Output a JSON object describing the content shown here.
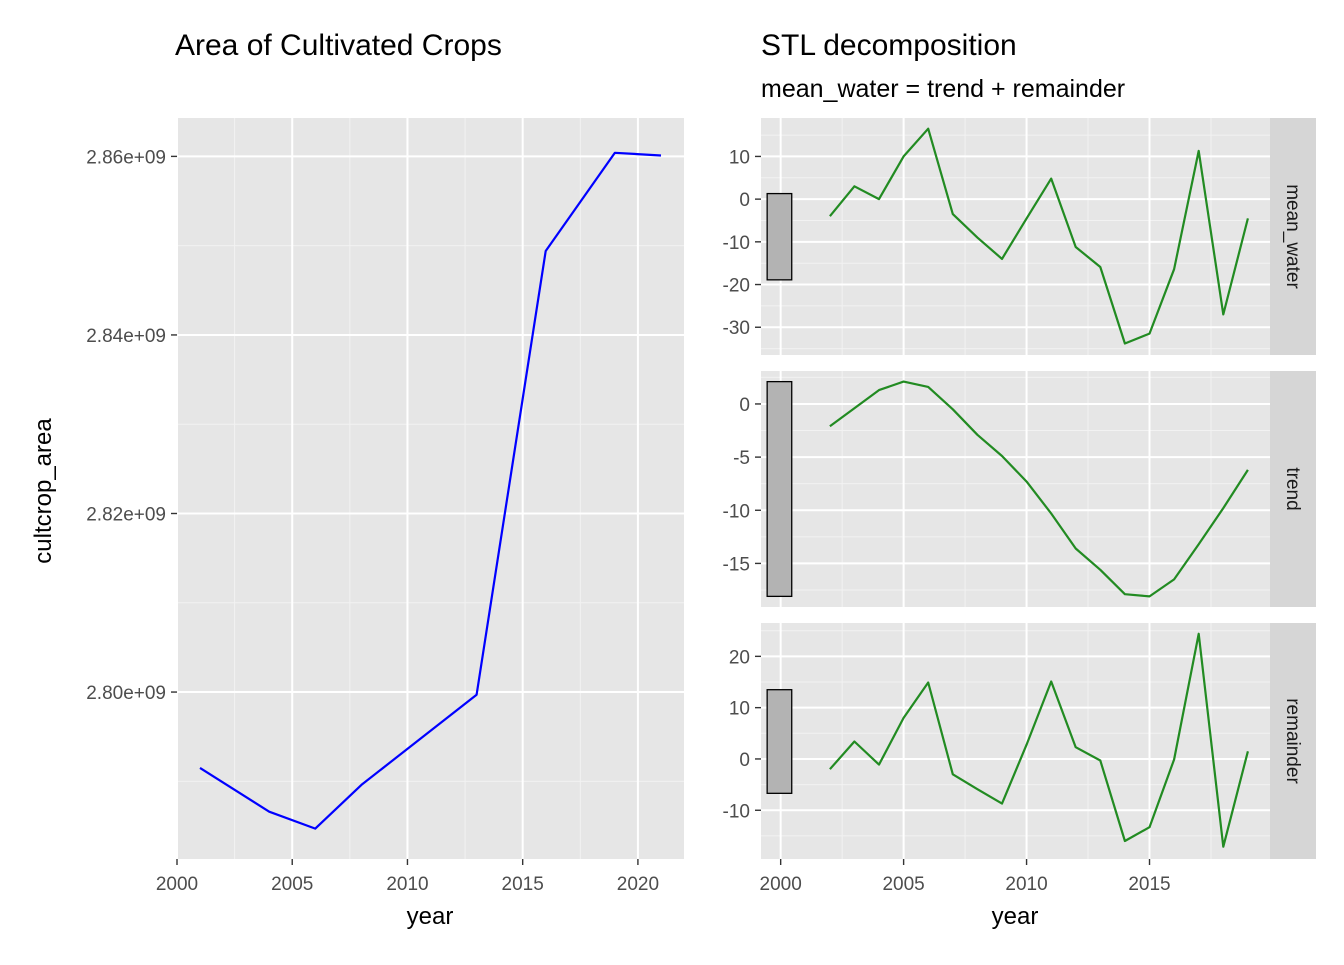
{
  "chart_data": [
    {
      "type": "line",
      "title": "Area of Cultivated Crops",
      "xlabel": "year",
      "ylabel": "cultcrop_area",
      "xlim": [
        2000,
        2022
      ],
      "ylim": [
        2781300000.0,
        2864300000.0
      ],
      "x_ticks": [
        2000,
        2005,
        2010,
        2015,
        2020
      ],
      "x_tick_labels": [
        "2000",
        "2005",
        "2010",
        "2015",
        "2020"
      ],
      "y_ticks": [
        2800000000.0,
        2820000000.0,
        2840000000.0,
        2860000000.0
      ],
      "y_tick_labels": [
        "2.80e+09",
        "2.82e+09",
        "2.84e+09",
        "2.86e+09"
      ],
      "grid": true,
      "color": "#0000ff",
      "series": [
        {
          "x": [
            2001,
            2004,
            2006,
            2008,
            2013,
            2016,
            2019,
            2021
          ],
          "y": [
            2791500000.0,
            2786600000.0,
            2784700000.0,
            2789600000.0,
            2799700000.0,
            2849400000.0,
            2860400000.0,
            2860100000.0
          ]
        }
      ]
    },
    {
      "type": "line",
      "title": "STL decomposition",
      "subtitle": "mean_water = trend + remainder",
      "xlabel": "year",
      "xlim": [
        1999.2,
        2019.9
      ],
      "x_ticks": [
        2000,
        2005,
        2010,
        2015
      ],
      "x_tick_labels": [
        "2000",
        "2005",
        "2010",
        "2015"
      ],
      "grid": true,
      "color": "#228b22",
      "x": [
        2002,
        2003,
        2004,
        2005,
        2006,
        2007,
        2008,
        2009,
        2010,
        2011,
        2012,
        2013,
        2014,
        2015,
        2016,
        2017,
        2018,
        2019
      ],
      "panels": [
        {
          "strip": "mean_water",
          "ylim": [
            -36.5,
            19.0
          ],
          "y_ticks": [
            -30,
            -20,
            -10,
            0,
            10
          ],
          "y_tick_labels": [
            "-30",
            "-20",
            "-10",
            "0",
            "10"
          ],
          "scale_bar": [
            -18.9,
            1.3
          ],
          "values": [
            -4.0,
            3.0,
            0.0,
            10.0,
            16.5,
            -3.5,
            -9.0,
            -14.0,
            -4.5,
            4.8,
            -11.2,
            -15.9,
            -33.8,
            -31.5,
            -16.4,
            11.3,
            -27.0,
            -4.5
          ]
        },
        {
          "strip": "trend",
          "ylim": [
            -19.1,
            3.1
          ],
          "y_ticks": [
            -15,
            -10,
            -5,
            0
          ],
          "y_tick_labels": [
            "-15",
            "-10",
            "-5",
            "0"
          ],
          "scale_bar": [
            -18.1,
            2.1
          ],
          "values": [
            -2.1,
            -0.4,
            1.3,
            2.1,
            1.6,
            -0.5,
            -2.9,
            -4.9,
            -7.3,
            -10.3,
            -13.6,
            -15.6,
            -17.9,
            -18.1,
            -16.5,
            -13.2,
            -9.8,
            -6.2
          ]
        },
        {
          "strip": "remainder",
          "ylim": [
            -19.5,
            26.5
          ],
          "y_ticks": [
            -10,
            0,
            10,
            20
          ],
          "y_tick_labels": [
            "-10",
            "0",
            "10",
            "20"
          ],
          "scale_bar": [
            -6.7,
            13.5
          ],
          "values": [
            -2.0,
            3.4,
            -1.1,
            8.0,
            14.9,
            -3.0,
            -5.9,
            -8.7,
            2.8,
            15.1,
            2.3,
            -0.3,
            -16.0,
            -13.3,
            -0.1,
            24.4,
            -17.1,
            1.5
          ]
        }
      ]
    }
  ]
}
